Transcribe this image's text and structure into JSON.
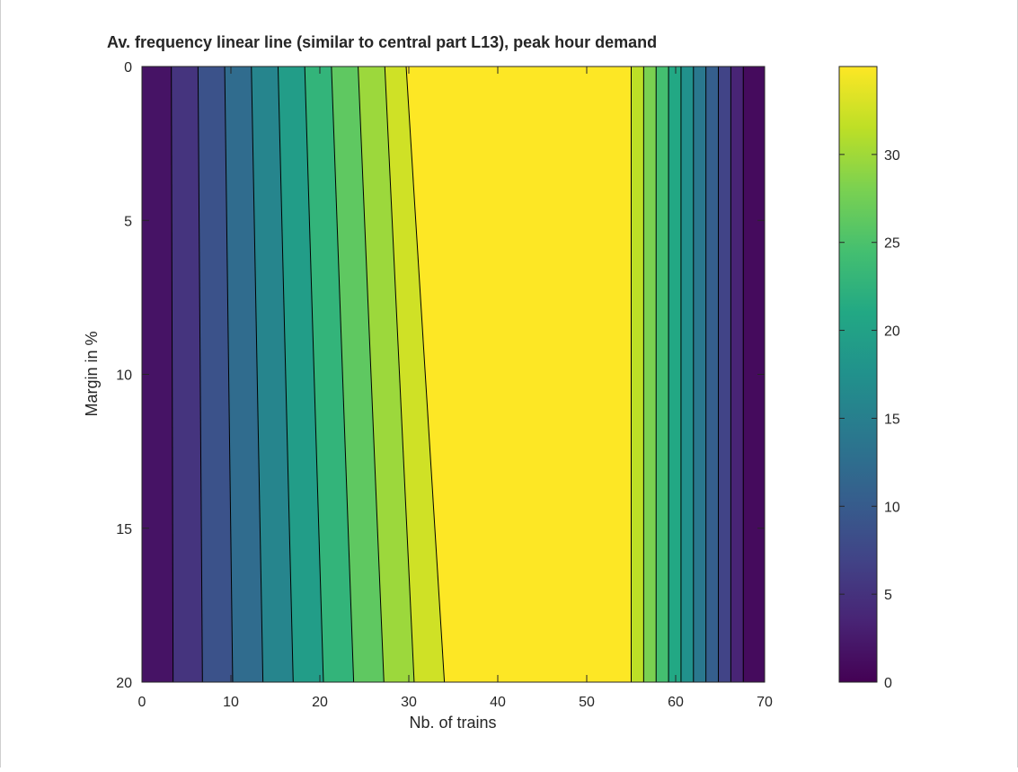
{
  "chart_data": {
    "type": "contourf",
    "title": "Av. frequency linear line (similar to central part L13), peak hour demand",
    "xlabel": "Nb. of trains",
    "ylabel": "Margin in %",
    "xlim": [
      0,
      70
    ],
    "ylim": [
      20,
      0
    ],
    "y_axis_reversed": true,
    "xticks": [
      0,
      10,
      20,
      30,
      40,
      50,
      60,
      70
    ],
    "yticks": [
      0,
      5,
      10,
      15,
      20
    ],
    "colorbar": {
      "range": [
        0,
        35
      ],
      "ticks": [
        0,
        5,
        10,
        15,
        20,
        25,
        30
      ],
      "colormap": "viridis"
    },
    "contour_step": 3.5,
    "contour_levels": [
      3.5,
      7,
      10.5,
      14,
      17.5,
      21,
      24.5,
      28,
      31.5
    ],
    "bands": [
      {
        "x_top": [
          0,
          3.3
        ],
        "x_bottom": [
          0,
          3.5
        ],
        "value": 1.75
      },
      {
        "x_top": [
          3.3,
          6.3
        ],
        "x_bottom": [
          3.5,
          6.8
        ],
        "value": 5.25
      },
      {
        "x_top": [
          6.3,
          9.3
        ],
        "x_bottom": [
          6.8,
          10.2
        ],
        "value": 8.75
      },
      {
        "x_top": [
          9.3,
          12.3
        ],
        "x_bottom": [
          10.2,
          13.6
        ],
        "value": 12.25
      },
      {
        "x_top": [
          12.3,
          15.3
        ],
        "x_bottom": [
          13.6,
          17.0
        ],
        "value": 15.75
      },
      {
        "x_top": [
          15.3,
          18.3
        ],
        "x_bottom": [
          17.0,
          20.4
        ],
        "value": 19.25
      },
      {
        "x_top": [
          18.3,
          21.3
        ],
        "x_bottom": [
          20.4,
          23.8
        ],
        "value": 22.75
      },
      {
        "x_top": [
          21.3,
          24.3
        ],
        "x_bottom": [
          23.8,
          27.2
        ],
        "value": 26.25
      },
      {
        "x_top": [
          24.3,
          27.3
        ],
        "x_bottom": [
          27.2,
          30.6
        ],
        "value": 29.75
      },
      {
        "x_top": [
          27.3,
          29.7
        ],
        "x_bottom": [
          30.6,
          34.0
        ],
        "value": 32.5
      },
      {
        "x_top": [
          29.7,
          55.0
        ],
        "x_bottom": [
          34.0,
          55.0
        ],
        "value": 35
      },
      {
        "x_top": [
          55.0,
          56.4
        ],
        "x_bottom": [
          55.0,
          56.4
        ],
        "value": 31.5
      },
      {
        "x_top": [
          56.4,
          57.8
        ],
        "x_bottom": [
          56.4,
          57.8
        ],
        "value": 28
      },
      {
        "x_top": [
          57.8,
          59.2
        ],
        "x_bottom": [
          57.8,
          59.2
        ],
        "value": 24.5
      },
      {
        "x_top": [
          59.2,
          60.6
        ],
        "x_bottom": [
          59.2,
          60.6
        ],
        "value": 21
      },
      {
        "x_top": [
          60.6,
          62.0
        ],
        "x_bottom": [
          60.6,
          62.0
        ],
        "value": 17.5
      },
      {
        "x_top": [
          62.0,
          63.4
        ],
        "x_bottom": [
          62.0,
          63.4
        ],
        "value": 14
      },
      {
        "x_top": [
          63.4,
          64.8
        ],
        "x_bottom": [
          63.4,
          64.8
        ],
        "value": 10.5
      },
      {
        "x_top": [
          64.8,
          66.2
        ],
        "x_bottom": [
          64.8,
          66.2
        ],
        "value": 7
      },
      {
        "x_top": [
          66.2,
          67.6
        ],
        "x_bottom": [
          66.2,
          67.6
        ],
        "value": 3.5
      },
      {
        "x_top": [
          67.6,
          70.0
        ],
        "x_bottom": [
          67.6,
          70.0
        ],
        "value": 1.0
      }
    ]
  }
}
